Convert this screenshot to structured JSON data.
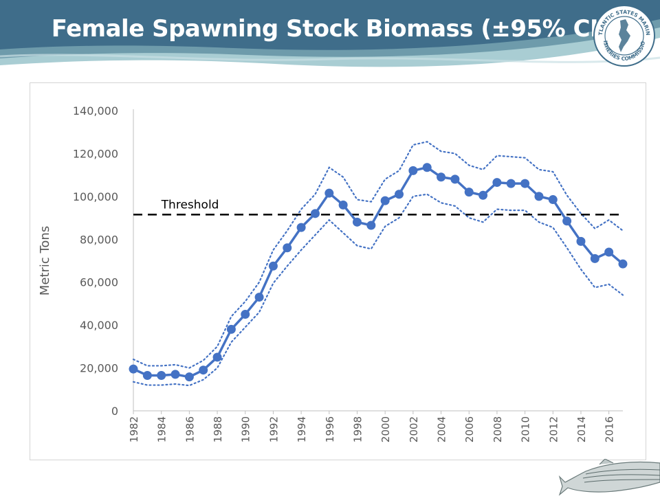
{
  "slide": {
    "title": "Female Spawning Stock Biomass (±95% CI)",
    "logo_text_top": "ATLANTIC STATES MARINE",
    "logo_text_bottom": "FISHERIES COMMISSION"
  },
  "colors": {
    "banner_dark": "#3f6d8a",
    "banner_light": "#a9cdd3",
    "series": "#4472c4",
    "threshold": "#000000",
    "axis_text": "#595959"
  },
  "chart_data": {
    "type": "line",
    "ylabel": "Metric Tons",
    "xlabel": "",
    "ylim": [
      0,
      140000
    ],
    "yticks": [
      0,
      20000,
      40000,
      60000,
      80000,
      100000,
      120000,
      140000
    ],
    "ytick_labels": [
      "0",
      "20,000",
      "40,000",
      "60,000",
      "80,000",
      "100,000",
      "120,000",
      "140,000"
    ],
    "xlim": [
      1982,
      2017
    ],
    "xtick_labels": [
      "1982",
      "1984",
      "1986",
      "1988",
      "1990",
      "1992",
      "1994",
      "1996",
      "1998",
      "2000",
      "2002",
      "2004",
      "2006",
      "2008",
      "2010",
      "2012",
      "2014",
      "2016"
    ],
    "grid": false,
    "x": [
      1982,
      1983,
      1984,
      1985,
      1986,
      1987,
      1988,
      1989,
      1990,
      1991,
      1992,
      1993,
      1994,
      1995,
      1996,
      1997,
      1998,
      1999,
      2000,
      2001,
      2002,
      2003,
      2004,
      2005,
      2006,
      2007,
      2008,
      2009,
      2010,
      2011,
      2012,
      2013,
      2014,
      2015,
      2016,
      2017
    ],
    "series": [
      {
        "style": "solid-markers",
        "values": [
          19500,
          16500,
          16500,
          17000,
          15800,
          19000,
          25000,
          38000,
          45000,
          53000,
          67500,
          76000,
          85500,
          92000,
          101500,
          96000,
          88000,
          86500,
          98000,
          101000,
          112000,
          113500,
          109000,
          108000,
          102000,
          100500,
          106500,
          106000,
          106000,
          100000,
          98500,
          88500,
          79000,
          71000,
          74000,
          68500
        ]
      },
      {
        "style": "dotted",
        "role": "upper-ci",
        "values": [
          24000,
          21000,
          21000,
          21500,
          20000,
          23500,
          30000,
          44000,
          51000,
          60000,
          75000,
          84000,
          94000,
          101000,
          113500,
          109000,
          98500,
          97500,
          108000,
          112000,
          124000,
          125500,
          121000,
          120000,
          114500,
          112500,
          119000,
          118500,
          118000,
          112500,
          111500,
          100500,
          92000,
          85000,
          89000,
          84000
        ]
      },
      {
        "style": "dotted",
        "role": "lower-ci",
        "values": [
          13500,
          12000,
          12000,
          12500,
          11800,
          14500,
          20000,
          32000,
          39000,
          46000,
          59500,
          67500,
          75000,
          82000,
          89000,
          83000,
          77000,
          75500,
          86000,
          90000,
          100000,
          101000,
          97000,
          95500,
          90000,
          88000,
          94000,
          93500,
          93500,
          88000,
          85500,
          76000,
          66000,
          57500,
          59000,
          54000
        ]
      }
    ],
    "threshold": {
      "label": "Threshold",
      "value": 91500
    }
  }
}
